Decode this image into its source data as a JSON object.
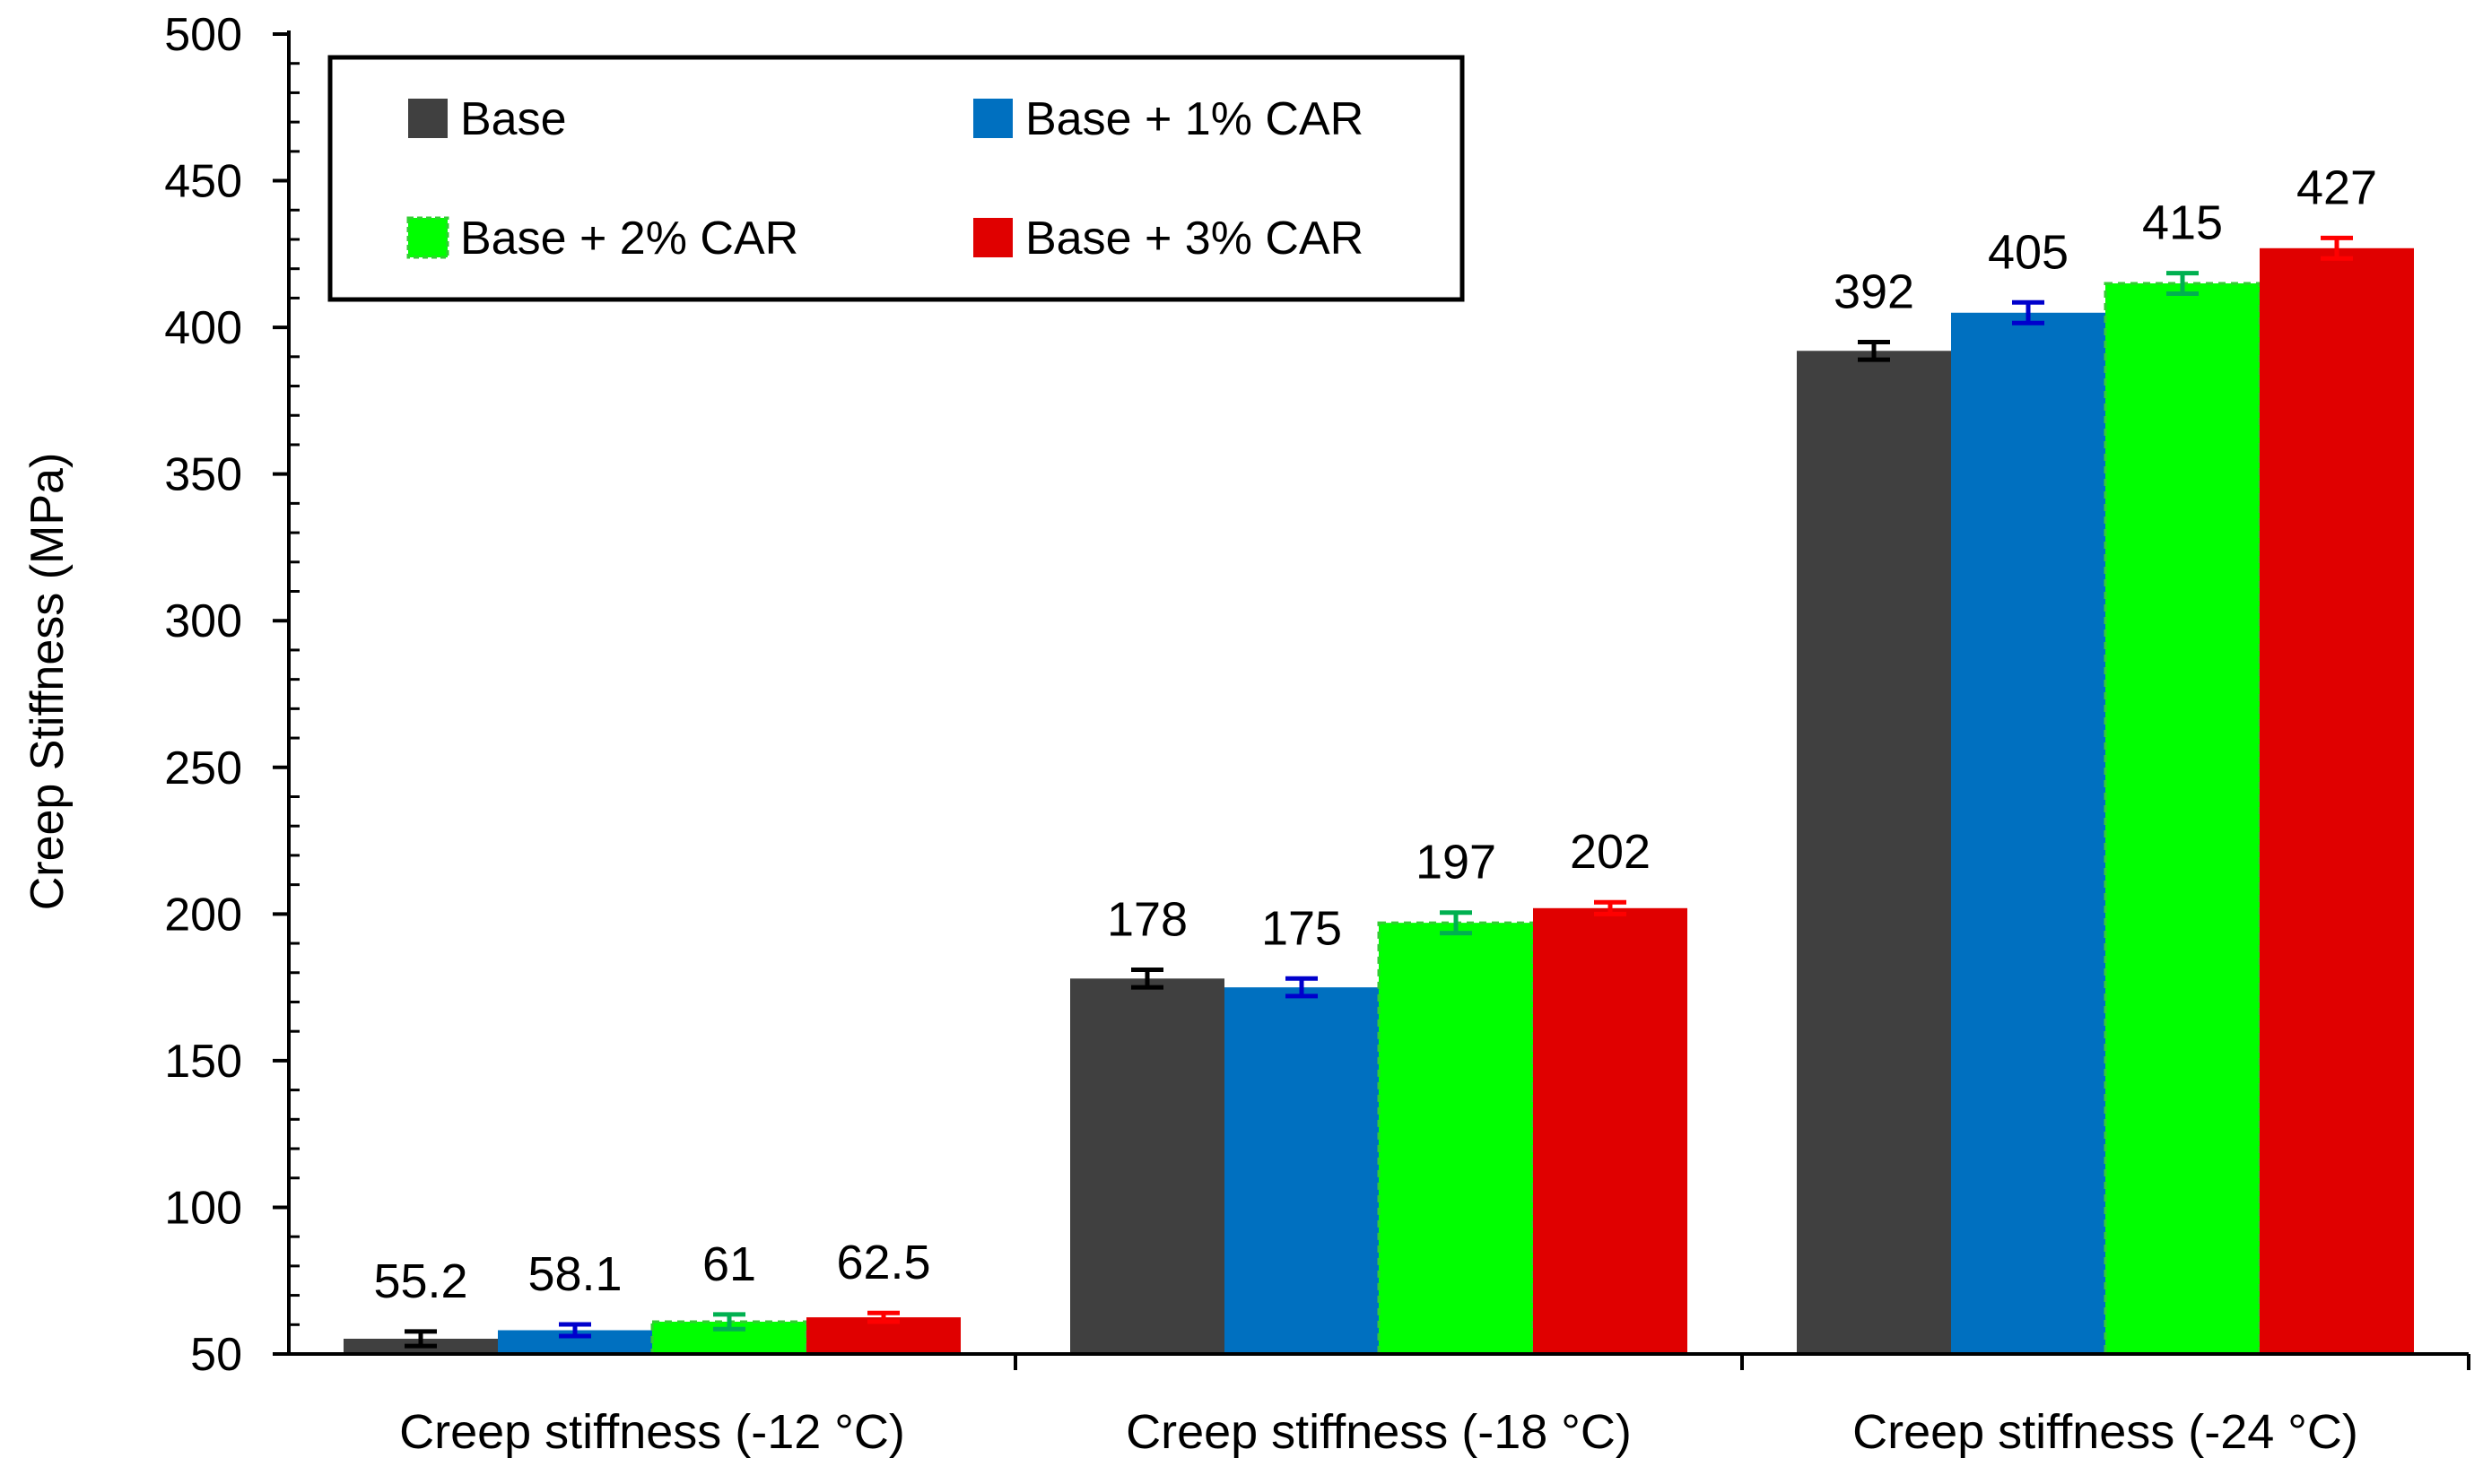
{
  "chart_data": {
    "type": "bar",
    "title": "",
    "xlabel": "",
    "ylabel": "Creep Stiffness (MPa)",
    "ylim": [
      50,
      500
    ],
    "yticks": [
      50,
      100,
      150,
      200,
      250,
      300,
      350,
      400,
      450,
      500
    ],
    "grid": false,
    "legend_position": "top-left",
    "categories": [
      "Creep stiffness (-12 °C)",
      "Creep stiffness (-18 °C)",
      "Creep stiffness (-24 °C)"
    ],
    "series": [
      {
        "name": "Base",
        "color": "#404040",
        "error_color": "#000000",
        "values": [
          55.2,
          178,
          392
        ],
        "labels": [
          "55.2",
          "178",
          "392"
        ],
        "errors": [
          2.5,
          3,
          3
        ]
      },
      {
        "name": "Base + 1% CAR",
        "color": "#0070c0",
        "error_color": "#0000cc",
        "values": [
          58.1,
          175,
          405
        ],
        "labels": [
          "58.1",
          "175",
          "405"
        ],
        "errors": [
          2,
          3,
          3.5
        ]
      },
      {
        "name": "Base + 2% CAR",
        "color": "#00ff00",
        "error_color": "#00b050",
        "values": [
          61,
          197,
          415
        ],
        "labels": [
          "61",
          "197",
          "415"
        ],
        "errors": [
          2.5,
          3.5,
          3.5
        ]
      },
      {
        "name": "Base + 3% CAR",
        "color": "#e00000",
        "error_color": "#ff0000",
        "values": [
          62.5,
          202,
          427
        ],
        "labels": [
          "62.5",
          "202",
          "427"
        ],
        "errors": [
          1.5,
          2,
          3.5
        ]
      }
    ]
  }
}
